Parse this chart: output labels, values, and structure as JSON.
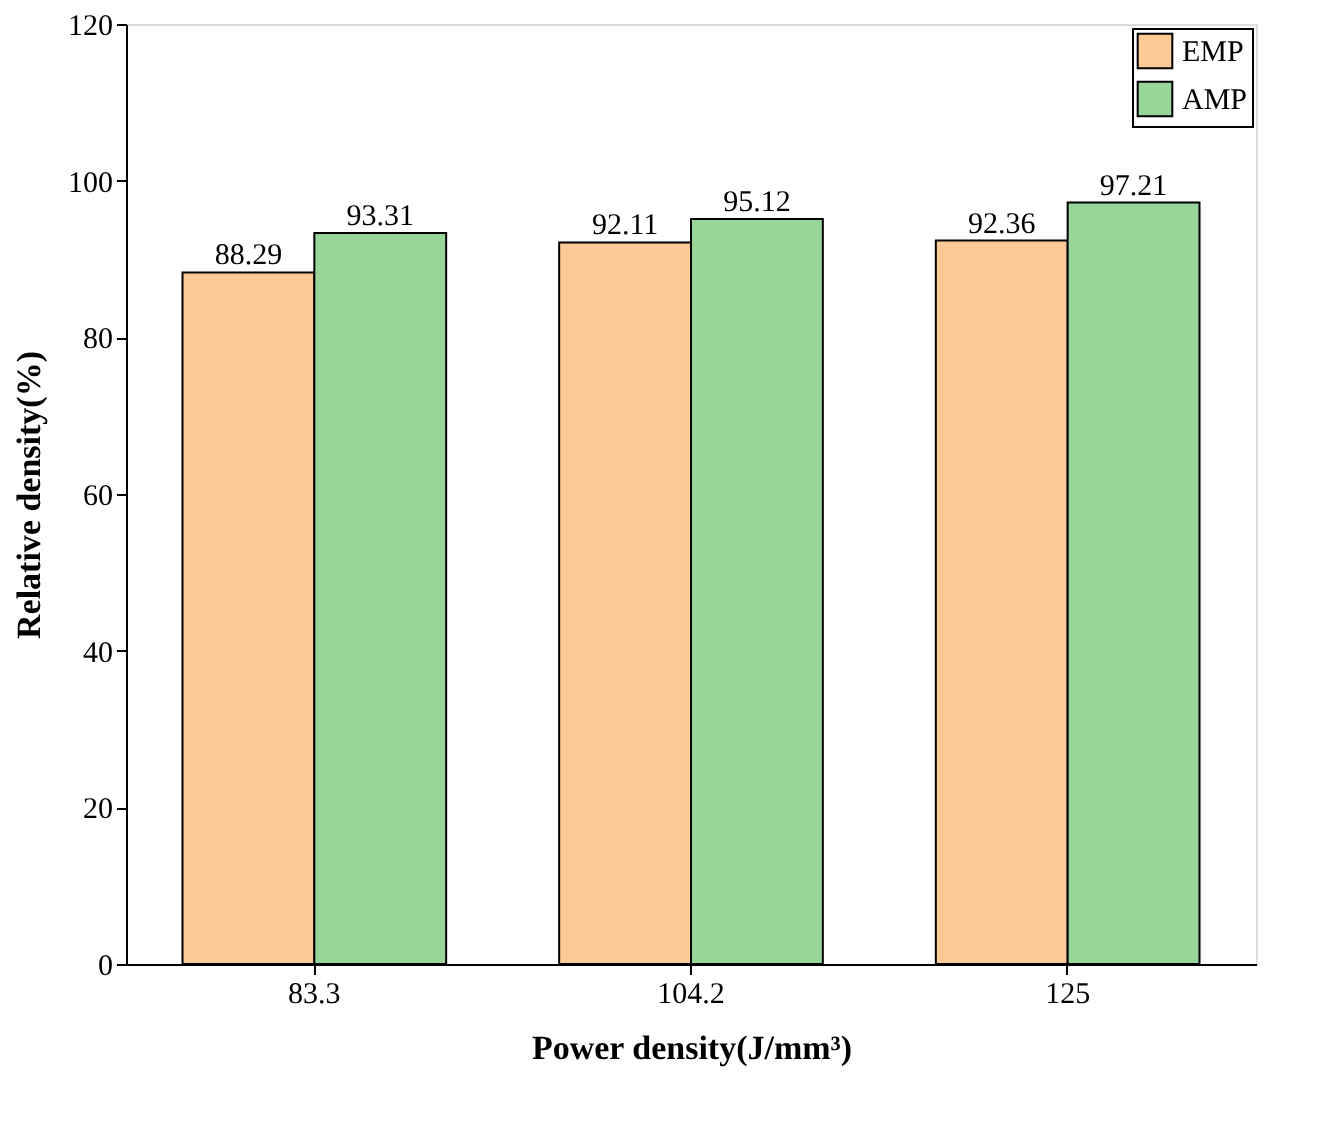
{
  "chart_data": {
    "type": "bar",
    "xlabel": "Power density(J/mm³)",
    "ylabel": "Relative density(%)",
    "categories": [
      "83.3",
      "104.2",
      "125"
    ],
    "series": [
      {
        "name": "EMP",
        "color": "#fdc997",
        "values": [
          88.29,
          92.11,
          92.36
        ]
      },
      {
        "name": "AMP",
        "color": "#98d598",
        "values": [
          93.31,
          95.12,
          97.21
        ]
      }
    ],
    "ylim": [
      0,
      120
    ],
    "yticks": [
      0,
      20,
      40,
      60,
      80,
      100,
      120
    ],
    "grid": false,
    "legend": "top right",
    "data_labels": true
  }
}
